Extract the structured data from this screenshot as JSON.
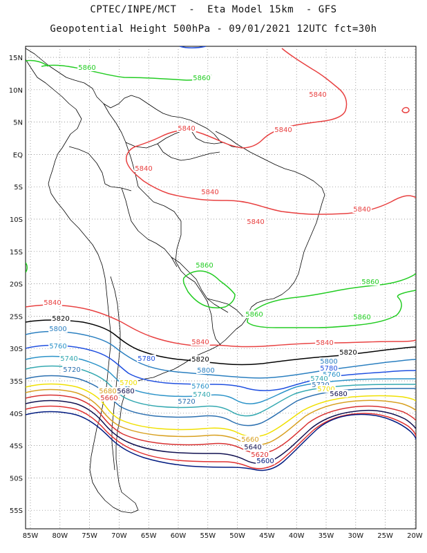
{
  "header": {
    "line1": "CPTEC/INPE/MCT  -  Eta Model 15km  - GFS",
    "line2": "Geopotential Height 500hPa - 09/01/2021 12UTC fct=30h"
  },
  "axes": {
    "lat_labels": [
      "15N",
      "10N",
      "5N",
      "EQ",
      "5S",
      "10S",
      "15S",
      "20S",
      "25S",
      "30S",
      "35S",
      "40S",
      "45S",
      "50S",
      "55S"
    ],
    "lon_labels": [
      "85W",
      "80W",
      "75W",
      "70W",
      "65W",
      "60W",
      "55W",
      "50W",
      "45W",
      "40W",
      "35W",
      "30W",
      "25W",
      "20W"
    ]
  },
  "colors": {
    "c5860": "#22cc22",
    "c5840": "#e84040",
    "c5820": "#000000",
    "c5800": "#2a7fc0",
    "c5780": "#1f4fe0",
    "c5760": "#2a92c8",
    "c5740": "#33a8b0",
    "c5720": "#2a6fb0",
    "c5700": "#f0e000",
    "c5680": "#d8a020",
    "c5660": "#d83030",
    "c5640": "#101050",
    "c5620": "#e03030",
    "c5600": "#001a80",
    "coast": "#000000"
  },
  "contour_labels": [
    {
      "name": "label-5860-north-west",
      "text": "5860",
      "color": "c5860"
    },
    {
      "name": "label-5860-north",
      "text": "5860",
      "color": "c5860"
    },
    {
      "name": "label-5840-north-east",
      "text": "5840",
      "color": "c5840"
    },
    {
      "name": "label-5840-guianas",
      "text": "5840",
      "color": "c5840"
    },
    {
      "name": "label-5840-amazon-north",
      "text": "5840",
      "color": "c5840"
    },
    {
      "name": "label-5840-amazon-west",
      "text": "5840",
      "color": "c5840"
    },
    {
      "name": "label-5840-amazon",
      "text": "5840",
      "color": "c5840"
    },
    {
      "name": "label-5840-atlantic-north",
      "text": "5840",
      "color": "c5840"
    },
    {
      "name": "label-5840-brazil-center",
      "text": "5840",
      "color": "c5840"
    },
    {
      "name": "label-5860-brazil",
      "text": "5860",
      "color": "c5860"
    },
    {
      "name": "label-5860-atlantic",
      "text": "5860",
      "color": "c5860"
    },
    {
      "name": "label-5860-coast",
      "text": "5860",
      "color": "c5860"
    },
    {
      "name": "label-5860-atlantic-south",
      "text": "5860",
      "color": "c5860"
    },
    {
      "name": "label-5840-pacific",
      "text": "5840",
      "color": "c5840"
    },
    {
      "name": "label-5840-uruguay",
      "text": "5840",
      "color": "c5840"
    },
    {
      "name": "label-5840-atlantic-south",
      "text": "5840",
      "color": "c5840"
    },
    {
      "name": "label-5820-pacific",
      "text": "5820",
      "color": "c5820"
    },
    {
      "name": "label-5820-uruguay",
      "text": "5820",
      "color": "c5820"
    },
    {
      "name": "label-5820-atlantic",
      "text": "5820",
      "color": "c5820"
    },
    {
      "name": "label-5800-pacific",
      "text": "5800",
      "color": "c5800"
    },
    {
      "name": "label-5800-uruguay",
      "text": "5800",
      "color": "c5800"
    },
    {
      "name": "label-5800-atlantic",
      "text": "5800",
      "color": "c5800"
    },
    {
      "name": "label-5780-argentina",
      "text": "5780",
      "color": "c5780"
    },
    {
      "name": "label-5780-atlantic",
      "text": "5780",
      "color": "c5780"
    },
    {
      "name": "label-5760-pacific",
      "text": "5760",
      "color": "c5760"
    },
    {
      "name": "label-5760-argentina",
      "text": "5760",
      "color": "c5760"
    },
    {
      "name": "label-5760-atlantic",
      "text": "5760",
      "color": "c5760"
    },
    {
      "name": "label-5740-pacific",
      "text": "5740",
      "color": "c5740"
    },
    {
      "name": "label-5740-argentina",
      "text": "5740",
      "color": "c5740"
    },
    {
      "name": "label-5740-atlantic",
      "text": "5740",
      "color": "c5740"
    },
    {
      "name": "label-5720-pacific",
      "text": "5720",
      "color": "c5720"
    },
    {
      "name": "label-5720-argentina",
      "text": "5720",
      "color": "c5720"
    },
    {
      "name": "label-5720-atlantic",
      "text": "5720",
      "color": "c5720"
    },
    {
      "name": "label-5700-andes",
      "text": "5700",
      "color": "c5700"
    },
    {
      "name": "label-5700-atlantic",
      "text": "5700",
      "color": "c5700"
    },
    {
      "name": "label-5680-andes",
      "text": "5680",
      "color": "c5680"
    },
    {
      "name": "label-5680-andes-east",
      "text": "5680",
      "color": "c5640"
    },
    {
      "name": "label-5680-atlantic",
      "text": "5680",
      "color": "c5640"
    },
    {
      "name": "label-5660-chile",
      "text": "5660",
      "color": "c5660"
    },
    {
      "name": "label-5660-south",
      "text": "5660",
      "color": "c5680"
    },
    {
      "name": "label-5640-south",
      "text": "5640",
      "color": "c5640"
    },
    {
      "name": "label-5620-south",
      "text": "5620",
      "color": "c5620"
    },
    {
      "name": "label-5600-south",
      "text": "5600",
      "color": "c5600"
    }
  ]
}
